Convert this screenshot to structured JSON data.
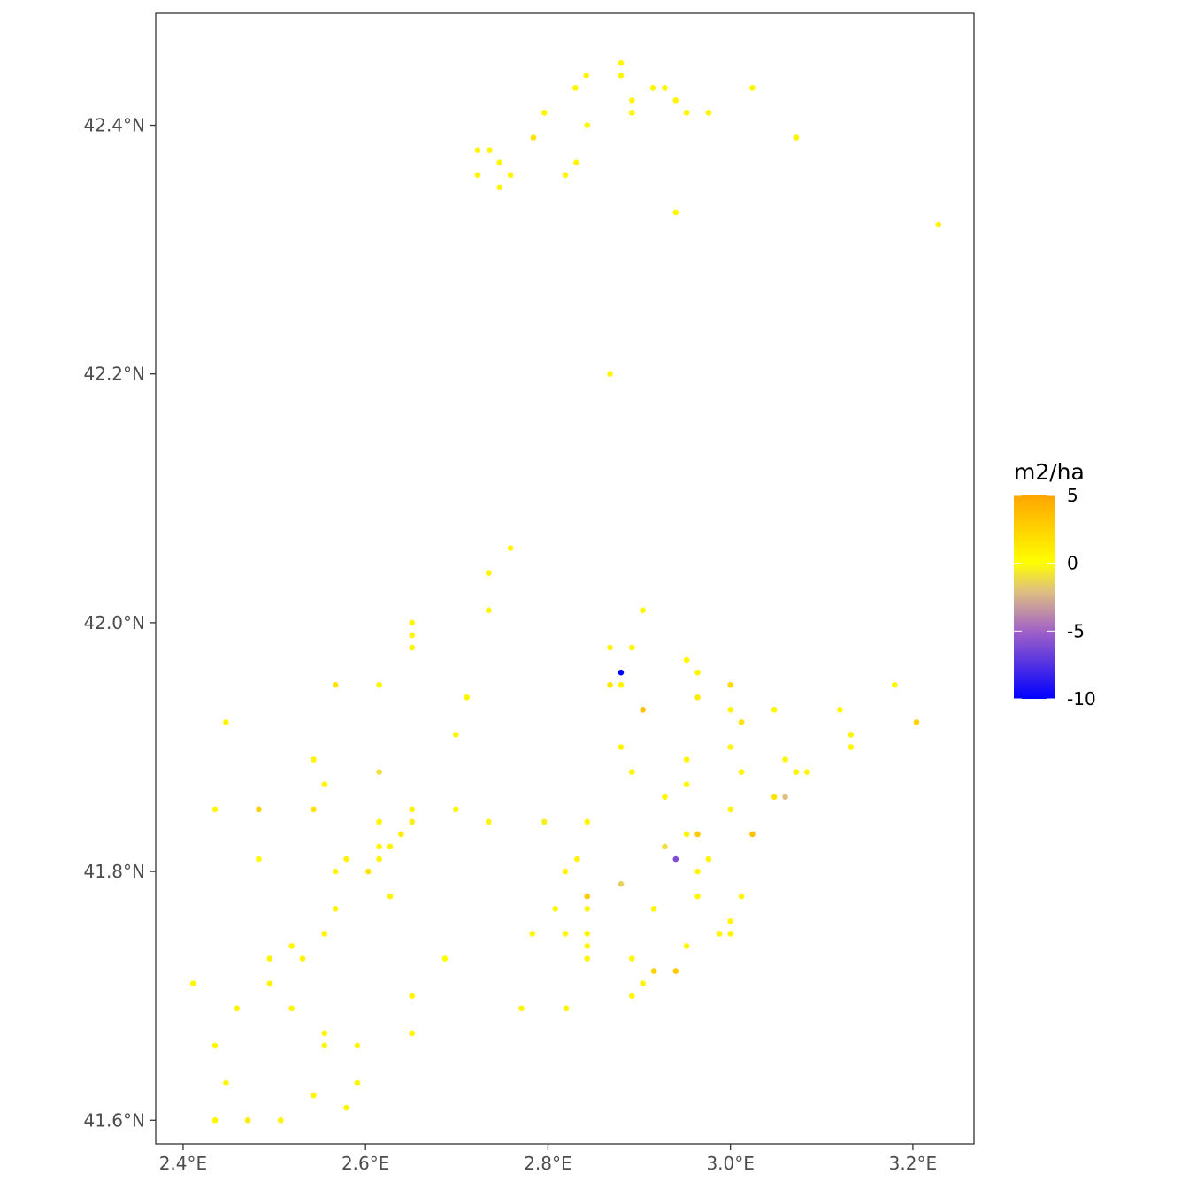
{
  "chart_data": {
    "type": "scatter",
    "title": "",
    "xlabel": "",
    "ylabel": "",
    "xlim": [
      2.37,
      3.267
    ],
    "ylim": [
      41.581,
      42.49
    ],
    "x_ticks": [
      {
        "value": 2.4,
        "label": "2.4°E"
      },
      {
        "value": 2.6,
        "label": "2.6°E"
      },
      {
        "value": 2.8,
        "label": "2.8°E"
      },
      {
        "value": 3.0,
        "label": "3.0°E"
      },
      {
        "value": 3.2,
        "label": "3.2°E"
      }
    ],
    "y_ticks": [
      {
        "value": 41.6,
        "label": "41.6°N"
      },
      {
        "value": 41.8,
        "label": "41.8°N"
      },
      {
        "value": 42.0,
        "label": "42.0°N"
      },
      {
        "value": 42.2,
        "label": "42.2°N"
      },
      {
        "value": 42.4,
        "label": "42.4°N"
      }
    ],
    "grid": false,
    "legend": {
      "title": "m2/ha",
      "position": "right",
      "min": -10,
      "max": 5,
      "ticks": [
        {
          "value": 5,
          "label": "5"
        },
        {
          "value": 0,
          "label": "0"
        },
        {
          "value": -5,
          "label": "-5"
        },
        {
          "value": -10,
          "label": "-10"
        }
      ],
      "colors": [
        {
          "value": -10,
          "color": "#0000ff"
        },
        {
          "value": -5,
          "color": "#a060c8"
        },
        {
          "value": -2,
          "color": "#dfc080"
        },
        {
          "value": 0,
          "color": "#ffff00"
        },
        {
          "value": 5,
          "color": "#ffa500"
        }
      ]
    },
    "points": [
      [
        2.88,
        42.45,
        0.5
      ],
      [
        2.88,
        42.44,
        0.5
      ],
      [
        2.842,
        42.44,
        0.5
      ],
      [
        2.83,
        42.43,
        0.5
      ],
      [
        2.915,
        42.43,
        0.5
      ],
      [
        2.928,
        42.43,
        0.5
      ],
      [
        3.024,
        42.43,
        0.5
      ],
      [
        2.892,
        42.42,
        0.5
      ],
      [
        2.94,
        42.42,
        0.5
      ],
      [
        2.796,
        42.41,
        0.5
      ],
      [
        2.892,
        42.41,
        0.5
      ],
      [
        2.952,
        42.41,
        0.5
      ],
      [
        2.976,
        42.41,
        0.5
      ],
      [
        2.843,
        42.4,
        0.5
      ],
      [
        3.072,
        42.39,
        0.5
      ],
      [
        2.784,
        42.39,
        1.5
      ],
      [
        2.723,
        42.38,
        0.5
      ],
      [
        2.736,
        42.38,
        0.5
      ],
      [
        2.747,
        42.37,
        0.5
      ],
      [
        2.831,
        42.37,
        0.5
      ],
      [
        2.723,
        42.36,
        0.5
      ],
      [
        2.759,
        42.36,
        0.5
      ],
      [
        2.819,
        42.36,
        0.5
      ],
      [
        2.747,
        42.35,
        0.5
      ],
      [
        2.94,
        42.33,
        0.5
      ],
      [
        3.228,
        42.32,
        0.5
      ],
      [
        2.868,
        42.2,
        0.5
      ],
      [
        2.759,
        42.06,
        0.5
      ],
      [
        2.735,
        42.04,
        0.5
      ],
      [
        2.735,
        42.01,
        0.5
      ],
      [
        2.904,
        42.01,
        0.5
      ],
      [
        2.651,
        42.0,
        0.5
      ],
      [
        2.651,
        41.99,
        0.5
      ],
      [
        2.651,
        41.98,
        0.5
      ],
      [
        2.868,
        41.98,
        0.5
      ],
      [
        2.892,
        41.98,
        0.5
      ],
      [
        2.952,
        41.97,
        0.5
      ],
      [
        2.88,
        41.96,
        -10
      ],
      [
        2.964,
        41.96,
        0.5
      ],
      [
        2.567,
        41.95,
        1.5
      ],
      [
        2.615,
        41.95,
        0.5
      ],
      [
        2.868,
        41.95,
        1.5
      ],
      [
        2.88,
        41.95,
        0.5
      ],
      [
        3.0,
        41.95,
        2
      ],
      [
        3.18,
        41.95,
        0.5
      ],
      [
        2.711,
        41.94,
        0.5
      ],
      [
        2.964,
        41.94,
        1
      ],
      [
        2.904,
        41.93,
        3.5
      ],
      [
        3.0,
        41.93,
        0.5
      ],
      [
        3.048,
        41.93,
        0.5
      ],
      [
        3.12,
        41.93,
        0.5
      ],
      [
        2.447,
        41.92,
        0.5
      ],
      [
        3.012,
        41.92,
        1.5
      ],
      [
        3.204,
        41.92,
        2.5
      ],
      [
        2.699,
        41.91,
        0.5
      ],
      [
        3.132,
        41.91,
        0.5
      ],
      [
        2.88,
        41.9,
        0.5
      ],
      [
        3.0,
        41.9,
        0.5
      ],
      [
        3.132,
        41.9,
        0.5
      ],
      [
        2.543,
        41.89,
        0.5
      ],
      [
        2.952,
        41.89,
        0.5
      ],
      [
        3.06,
        41.89,
        0.5
      ],
      [
        2.615,
        41.88,
        -1
      ],
      [
        2.892,
        41.88,
        0.5
      ],
      [
        3.012,
        41.88,
        0.5
      ],
      [
        3.072,
        41.88,
        0.5
      ],
      [
        3.084,
        41.88,
        0.5
      ],
      [
        2.555,
        41.87,
        0.5
      ],
      [
        2.952,
        41.87,
        0.5
      ],
      [
        2.928,
        41.86,
        0.5
      ],
      [
        3.048,
        41.86,
        1.5
      ],
      [
        3.06,
        41.86,
        -2
      ],
      [
        2.435,
        41.85,
        0.5
      ],
      [
        2.483,
        41.85,
        2.5
      ],
      [
        2.543,
        41.85,
        1.5
      ],
      [
        2.651,
        41.85,
        0.5
      ],
      [
        2.699,
        41.85,
        0.5
      ],
      [
        3.0,
        41.85,
        0.5
      ],
      [
        2.615,
        41.84,
        0.5
      ],
      [
        2.651,
        41.84,
        -0.5
      ],
      [
        2.735,
        41.84,
        0.5
      ],
      [
        2.796,
        41.84,
        -0.5
      ],
      [
        2.843,
        41.84,
        0.5
      ],
      [
        2.639,
        41.83,
        1
      ],
      [
        2.952,
        41.83,
        0.5
      ],
      [
        2.964,
        41.83,
        3
      ],
      [
        3.024,
        41.83,
        3.5
      ],
      [
        2.615,
        41.82,
        0.5
      ],
      [
        2.627,
        41.82,
        0.5
      ],
      [
        2.928,
        41.82,
        -1
      ],
      [
        2.483,
        41.81,
        0
      ],
      [
        2.579,
        41.81,
        0.5
      ],
      [
        2.615,
        41.81,
        0.5
      ],
      [
        2.832,
        41.81,
        0.5
      ],
      [
        2.94,
        41.81,
        -6
      ],
      [
        2.976,
        41.81,
        0.5
      ],
      [
        2.567,
        41.8,
        0.5
      ],
      [
        2.603,
        41.8,
        1.5
      ],
      [
        2.819,
        41.8,
        0.5
      ],
      [
        2.964,
        41.8,
        0.5
      ],
      [
        2.88,
        41.79,
        -1.5
      ],
      [
        2.627,
        41.78,
        0.5
      ],
      [
        2.843,
        41.78,
        3
      ],
      [
        2.964,
        41.78,
        0.5
      ],
      [
        3.012,
        41.78,
        0.5
      ],
      [
        2.567,
        41.77,
        0.5
      ],
      [
        2.808,
        41.77,
        0.5
      ],
      [
        2.843,
        41.77,
        0.5
      ],
      [
        2.916,
        41.77,
        0.5
      ],
      [
        3.0,
        41.76,
        0.5
      ],
      [
        2.555,
        41.75,
        0.5
      ],
      [
        2.783,
        41.75,
        0.5
      ],
      [
        2.819,
        41.75,
        0.5
      ],
      [
        2.843,
        41.75,
        0.5
      ],
      [
        2.988,
        41.75,
        0.5
      ],
      [
        3.0,
        41.75,
        0.5
      ],
      [
        2.519,
        41.74,
        0.5
      ],
      [
        2.843,
        41.74,
        0.5
      ],
      [
        2.952,
        41.74,
        0.5
      ],
      [
        2.495,
        41.73,
        0.5
      ],
      [
        2.531,
        41.73,
        0.5
      ],
      [
        2.687,
        41.73,
        0
      ],
      [
        2.843,
        41.73,
        0.5
      ],
      [
        2.892,
        41.73,
        0.5
      ],
      [
        2.916,
        41.72,
        2.5
      ],
      [
        2.94,
        41.72,
        3
      ],
      [
        2.411,
        41.71,
        0.5
      ],
      [
        2.495,
        41.71,
        0.5
      ],
      [
        2.904,
        41.71,
        0.5
      ],
      [
        2.651,
        41.7,
        0.5
      ],
      [
        2.892,
        41.7,
        0.5
      ],
      [
        2.459,
        41.69,
        0.5
      ],
      [
        2.519,
        41.69,
        0.5
      ],
      [
        2.771,
        41.69,
        0.5
      ],
      [
        2.82,
        41.69,
        0.5
      ],
      [
        2.555,
        41.67,
        0.5
      ],
      [
        2.651,
        41.67,
        0.5
      ],
      [
        2.435,
        41.66,
        0.5
      ],
      [
        2.555,
        41.66,
        0.5
      ],
      [
        2.591,
        41.66,
        0.5
      ],
      [
        2.447,
        41.63,
        0.5
      ],
      [
        2.591,
        41.63,
        0.5
      ],
      [
        2.543,
        41.62,
        0.5
      ],
      [
        2.579,
        41.61,
        0.5
      ],
      [
        2.435,
        41.6,
        0.5
      ],
      [
        2.471,
        41.6,
        1
      ],
      [
        2.507,
        41.6,
        0.5
      ]
    ]
  }
}
